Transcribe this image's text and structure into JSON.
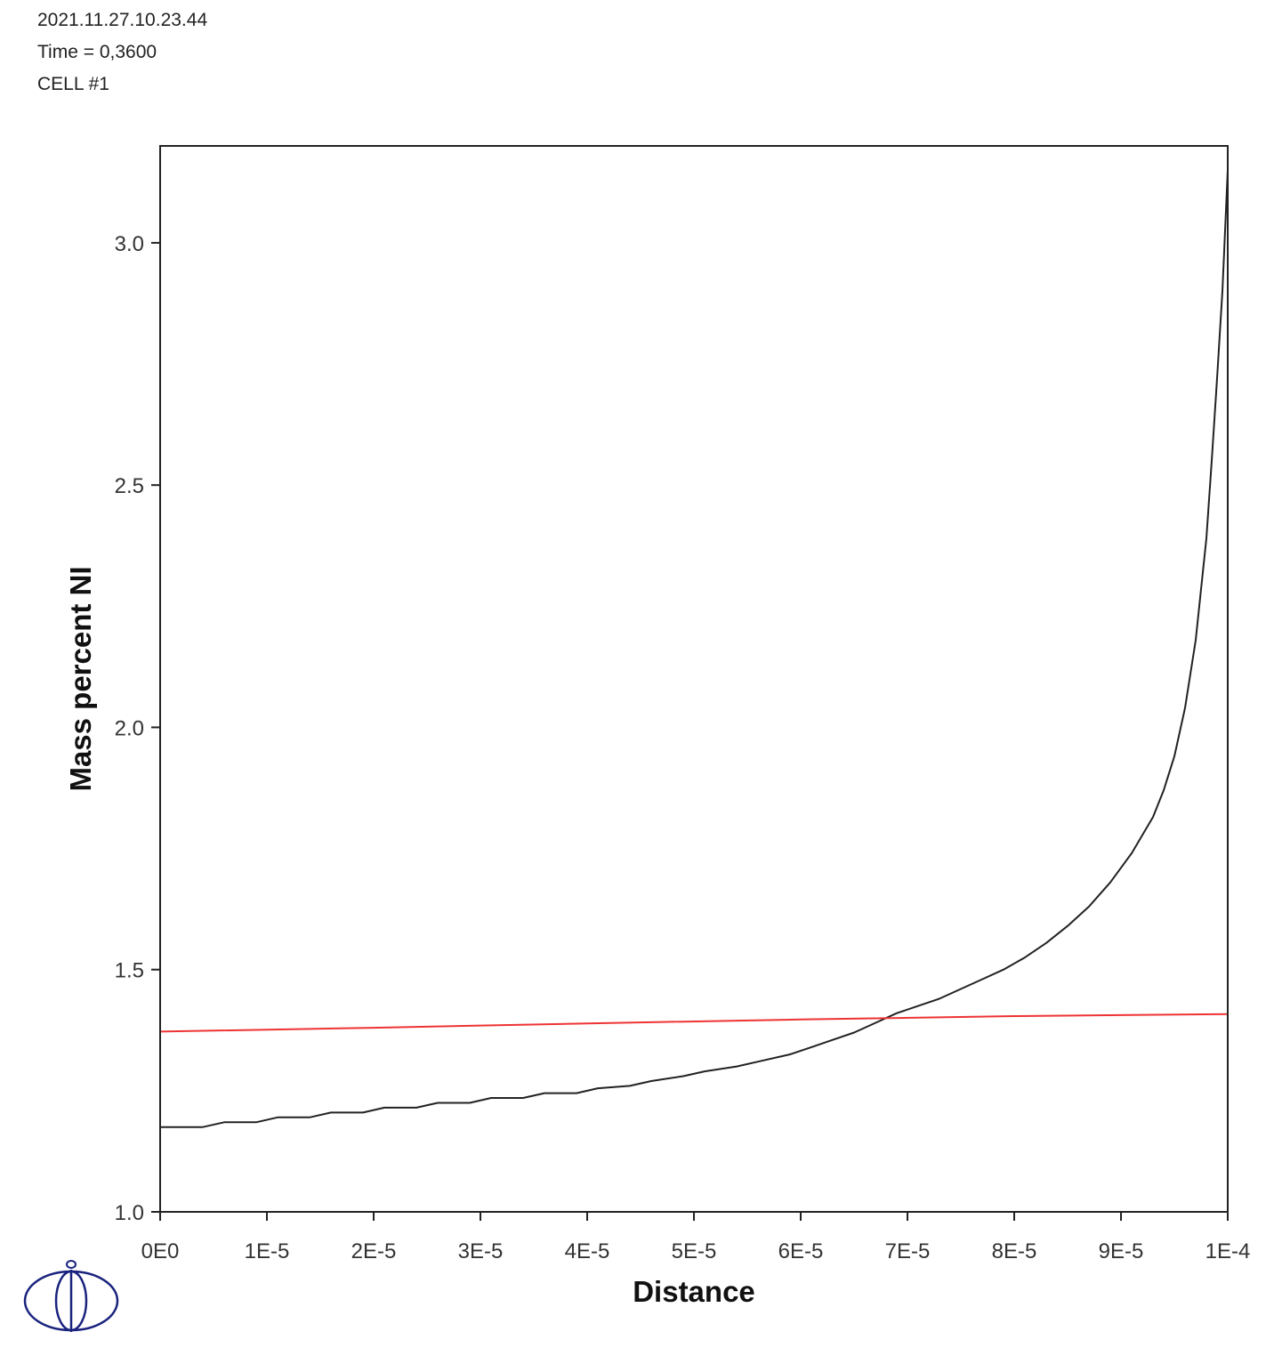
{
  "header": {
    "timestamp": "2021.11.27.10.23.44",
    "time": "Time = 0,3600",
    "cell": "CELL #1"
  },
  "chart_data": {
    "type": "line",
    "xlabel": "Distance",
    "ylabel": "Mass percent NI",
    "xlim": [
      0,
      0.0001
    ],
    "ylim": [
      1.0,
      3.2
    ],
    "grid": false,
    "x_ticks": [
      {
        "value": 0,
        "label": "0E0"
      },
      {
        "value": 1e-05,
        "label": "1E-5"
      },
      {
        "value": 2e-05,
        "label": "2E-5"
      },
      {
        "value": 3e-05,
        "label": "3E-5"
      },
      {
        "value": 4e-05,
        "label": "4E-5"
      },
      {
        "value": 5e-05,
        "label": "5E-5"
      },
      {
        "value": 6e-05,
        "label": "6E-5"
      },
      {
        "value": 7e-05,
        "label": "7E-5"
      },
      {
        "value": 8e-05,
        "label": "8E-5"
      },
      {
        "value": 9e-05,
        "label": "9E-5"
      },
      {
        "value": 0.0001,
        "label": "1E-4"
      }
    ],
    "y_ticks": [
      {
        "value": 1.0,
        "label": "1.0"
      },
      {
        "value": 1.5,
        "label": "1.5"
      },
      {
        "value": 2.0,
        "label": "2.0"
      },
      {
        "value": 2.5,
        "label": "2.5"
      },
      {
        "value": 3.0,
        "label": "3.0"
      }
    ],
    "series": [
      {
        "color": "#222222",
        "x": [
          0,
          4e-06,
          6e-06,
          9e-06,
          1.1e-05,
          1.4e-05,
          1.6e-05,
          1.9e-05,
          2.1e-05,
          2.4e-05,
          2.6e-05,
          2.9e-05,
          3.1e-05,
          3.4e-05,
          3.6e-05,
          3.9e-05,
          4.1e-05,
          4.4e-05,
          4.6e-05,
          4.9e-05,
          5.1e-05,
          5.4e-05,
          5.6e-05,
          5.9e-05,
          6.1e-05,
          6.3e-05,
          6.5e-05,
          6.7e-05,
          6.9e-05,
          7.1e-05,
          7.3e-05,
          7.5e-05,
          7.7e-05,
          7.9e-05,
          8.1e-05,
          8.3e-05,
          8.5e-05,
          8.7e-05,
          8.9e-05,
          9.1e-05,
          9.3e-05,
          9.4e-05,
          9.5e-05,
          9.6e-05,
          9.7e-05,
          9.8e-05,
          9.85e-05,
          9.9e-05,
          9.95e-05,
          0.0001
        ],
        "y": [
          1.175,
          1.175,
          1.185,
          1.185,
          1.195,
          1.195,
          1.205,
          1.205,
          1.215,
          1.215,
          1.225,
          1.225,
          1.235,
          1.235,
          1.245,
          1.245,
          1.255,
          1.26,
          1.27,
          1.28,
          1.29,
          1.3,
          1.31,
          1.325,
          1.34,
          1.355,
          1.37,
          1.39,
          1.41,
          1.425,
          1.44,
          1.46,
          1.48,
          1.5,
          1.525,
          1.555,
          1.59,
          1.63,
          1.68,
          1.74,
          1.815,
          1.87,
          1.94,
          2.04,
          2.18,
          2.39,
          2.55,
          2.72,
          2.9,
          3.15
        ]
      },
      {
        "color": "#ee3333",
        "x": [
          0,
          2e-05,
          4e-05,
          6e-05,
          8e-05,
          0.0001
        ],
        "y": [
          1.372,
          1.38,
          1.389,
          1.397,
          1.404,
          1.408
        ]
      }
    ]
  },
  "logo": {
    "color": "#1a237e"
  }
}
